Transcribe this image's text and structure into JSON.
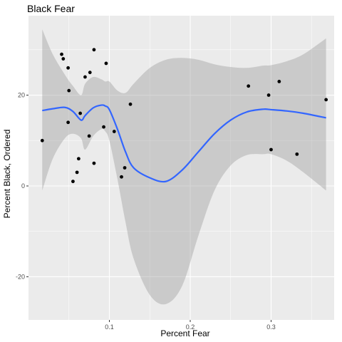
{
  "chart_data": {
    "type": "scatter",
    "title": "Black Fear",
    "xlabel": "Percent Fear",
    "ylabel": "Percent Black, Ordered",
    "xlim": [
      0.0,
      0.378
    ],
    "ylim": [
      -29.5,
      37.5
    ],
    "x_ticks": [
      0.1,
      0.2,
      0.3
    ],
    "x_tick_labels": [
      "0.1",
      "0.2",
      "0.3"
    ],
    "y_ticks": [
      -20,
      0,
      20
    ],
    "y_tick_labels": [
      "-20",
      "0",
      "20"
    ],
    "grid": true,
    "points": [
      {
        "x": 0.017,
        "y": 10
      },
      {
        "x": 0.041,
        "y": 29
      },
      {
        "x": 0.043,
        "y": 28
      },
      {
        "x": 0.049,
        "y": 26
      },
      {
        "x": 0.05,
        "y": 21
      },
      {
        "x": 0.049,
        "y": 14
      },
      {
        "x": 0.055,
        "y": 1
      },
      {
        "x": 0.06,
        "y": 3
      },
      {
        "x": 0.062,
        "y": 6
      },
      {
        "x": 0.064,
        "y": 16
      },
      {
        "x": 0.07,
        "y": 24
      },
      {
        "x": 0.075,
        "y": 11
      },
      {
        "x": 0.076,
        "y": 25
      },
      {
        "x": 0.081,
        "y": 30
      },
      {
        "x": 0.081,
        "y": 5
      },
      {
        "x": 0.093,
        "y": 13
      },
      {
        "x": 0.096,
        "y": 27
      },
      {
        "x": 0.106,
        "y": 12
      },
      {
        "x": 0.115,
        "y": 2
      },
      {
        "x": 0.119,
        "y": 4
      },
      {
        "x": 0.126,
        "y": 18
      },
      {
        "x": 0.272,
        "y": 22
      },
      {
        "x": 0.297,
        "y": 20
      },
      {
        "x": 0.3,
        "y": 8
      },
      {
        "x": 0.31,
        "y": 23
      },
      {
        "x": 0.332,
        "y": 7
      },
      {
        "x": 0.368,
        "y": 19
      }
    ],
    "smooth": {
      "x": [
        0.017,
        0.03,
        0.045,
        0.055,
        0.065,
        0.07,
        0.08,
        0.09,
        0.095,
        0.1,
        0.11,
        0.12,
        0.13,
        0.15,
        0.17,
        0.19,
        0.21,
        0.23,
        0.25,
        0.27,
        0.29,
        0.3,
        0.32,
        0.34,
        0.368
      ],
      "fit": [
        16.6,
        17.0,
        17.3,
        16.4,
        14.5,
        15.5,
        17.2,
        17.8,
        17.6,
        16.8,
        12.5,
        7.5,
        4.0,
        1.8,
        1.0,
        3.5,
        7.5,
        11.5,
        14.5,
        16.3,
        16.9,
        16.8,
        16.5,
        16.0,
        15.0
      ],
      "lower": [
        -1.0,
        6.0,
        10.5,
        11.5,
        10.5,
        8.0,
        11.0,
        12.5,
        12.0,
        10.0,
        1.5,
        -8.0,
        -16.0,
        -24.0,
        -26.0,
        -22.0,
        -11.0,
        -1.0,
        4.5,
        6.8,
        7.0,
        7.0,
        5.5,
        3.0,
        -1.0
      ],
      "upper": [
        34.5,
        29.0,
        24.5,
        22.0,
        20.0,
        22.5,
        24.0,
        23.5,
        23.0,
        23.0,
        21.0,
        20.5,
        22.5,
        26.0,
        27.8,
        28.2,
        27.8,
        26.8,
        26.2,
        26.0,
        26.5,
        26.6,
        27.5,
        29.0,
        32.5
      ]
    },
    "colors": {
      "panel": "#ebebeb",
      "grid_major": "#ffffff",
      "points": "#000000",
      "line": "#3366ff",
      "ribbon": "#999999"
    }
  }
}
